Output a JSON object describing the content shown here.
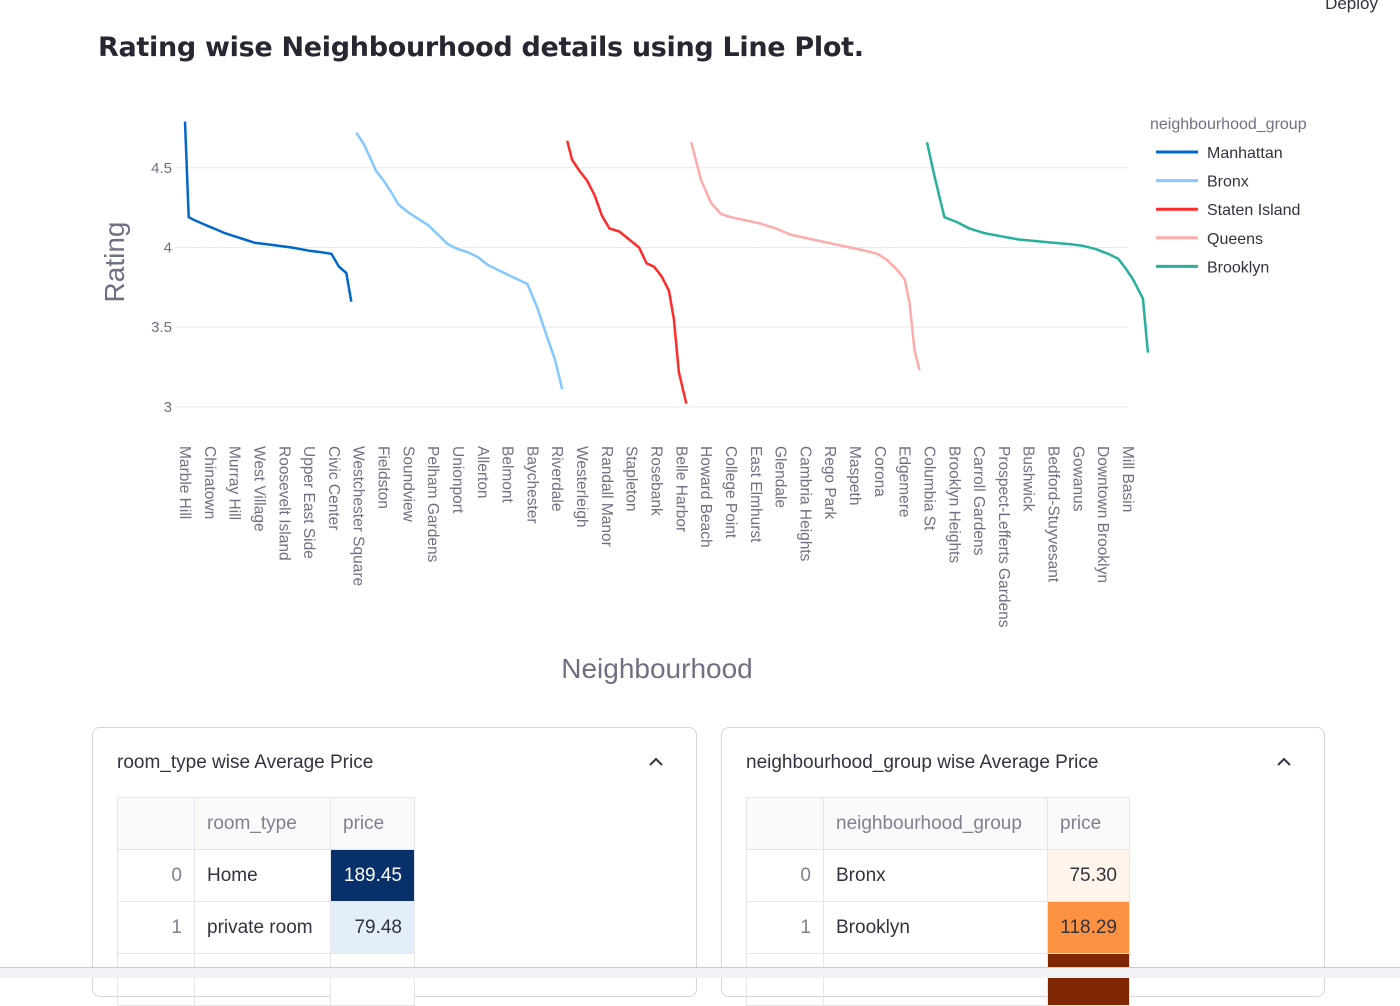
{
  "header": {
    "deploy_label": "Deploy"
  },
  "page": {
    "title": "Rating wise Neighbourhood details using Line Plot."
  },
  "chart_data": {
    "type": "line",
    "xlabel": "Neighbourhood",
    "ylabel": "Rating",
    "ylim": [
      2.98,
      4.8
    ],
    "yticks": [
      "3",
      "3.5",
      "4",
      "4.5"
    ],
    "grid": true,
    "legend_title": "neighbourhood_group",
    "legend_position": "top-right",
    "x_tick_labels": [
      "Marble Hill",
      "Chinatown",
      "Murray Hill",
      "West Village",
      "Roosevelt Island",
      "Upper East Side",
      "Civic Center",
      "Westchester Square",
      "Fieldston",
      "Soundview",
      "Pelham Gardens",
      "Unionport",
      "Allerton",
      "Belmont",
      "Baychester",
      "Riverdale",
      "Westerleigh",
      "Randall Manor",
      "Stapleton",
      "Rosebank",
      "Belle Harbor",
      "Howard Beach",
      "College Point",
      "East Elmhurst",
      "Glendale",
      "Cambria Heights",
      "Rego Park",
      "Maspeth",
      "Corona",
      "Edgemere",
      "Columbia St",
      "Brooklyn Heights",
      "Carroll Gardens",
      "Prospect-Lefferts Gardens",
      "Bushwick",
      "Bedford-Stuyvesant",
      "Gowanus",
      "Downtown Brooklyn",
      "Mill Basin"
    ],
    "series": [
      {
        "name": "Manhattan",
        "color": "#0068c9",
        "x": [
          0,
          0.15,
          0.4,
          0.7,
          1,
          1.3,
          1.6,
          2,
          2.4,
          2.8,
          3.3,
          3.8,
          4.3,
          5,
          5.5,
          5.9,
          6.2,
          6.5,
          6.7
        ],
        "y": [
          4.79,
          4.19,
          4.17,
          4.15,
          4.13,
          4.11,
          4.09,
          4.07,
          4.05,
          4.03,
          4.02,
          4.01,
          4.0,
          3.98,
          3.97,
          3.96,
          3.88,
          3.84,
          3.66
        ]
      },
      {
        "name": "Bronx",
        "color": "#83c9ff",
        "x": [
          6.9,
          7.2,
          7.5,
          7.7,
          8,
          8.3,
          8.6,
          9,
          9.4,
          9.8,
          10.2,
          10.6,
          11,
          11.4,
          11.8,
          12.2,
          12.6,
          13,
          13.4,
          13.8,
          14.2,
          14.5,
          14.9,
          15.2
        ],
        "y": [
          4.72,
          4.65,
          4.55,
          4.48,
          4.42,
          4.35,
          4.27,
          4.22,
          4.18,
          4.14,
          4.08,
          4.02,
          3.99,
          3.97,
          3.94,
          3.89,
          3.86,
          3.83,
          3.8,
          3.77,
          3.62,
          3.48,
          3.3,
          3.11
        ]
      },
      {
        "name": "Staten Island",
        "color": "#ff2b2b",
        "x": [
          15.4,
          15.6,
          15.9,
          16.2,
          16.5,
          16.8,
          17.1,
          17.5,
          17.9,
          18.3,
          18.6,
          18.9,
          19.2,
          19.5,
          19.7,
          19.9,
          20.2
        ],
        "y": [
          4.67,
          4.55,
          4.48,
          4.42,
          4.33,
          4.2,
          4.12,
          4.1,
          4.05,
          4.0,
          3.9,
          3.88,
          3.82,
          3.73,
          3.55,
          3.22,
          3.02
        ]
      },
      {
        "name": "Queens",
        "color": "#ffabab",
        "x": [
          20.4,
          20.8,
          21.2,
          21.6,
          22,
          22.6,
          23.2,
          23.8,
          24.4,
          25,
          25.6,
          26.2,
          26.8,
          27.4,
          27.9,
          28.3,
          28.7,
          29,
          29.2,
          29.4,
          29.6
        ],
        "y": [
          4.66,
          4.42,
          4.28,
          4.21,
          4.19,
          4.17,
          4.15,
          4.12,
          4.08,
          4.06,
          4.04,
          4.02,
          4.0,
          3.98,
          3.96,
          3.92,
          3.86,
          3.8,
          3.65,
          3.35,
          3.23
        ]
      },
      {
        "name": "Brooklyn",
        "color": "#29b09d",
        "x": [
          29.9,
          30.2,
          30.6,
          31.1,
          31.6,
          32.2,
          32.9,
          33.6,
          34.3,
          35,
          35.7,
          36.2,
          36.7,
          37.2,
          37.6,
          37.9,
          38.2,
          38.6,
          38.8
        ],
        "y": [
          4.66,
          4.45,
          4.19,
          4.16,
          4.12,
          4.09,
          4.07,
          4.05,
          4.04,
          4.03,
          4.02,
          4.01,
          3.99,
          3.96,
          3.93,
          3.87,
          3.8,
          3.68,
          3.34
        ]
      }
    ]
  },
  "panels": [
    {
      "title": "room_type wise Average Price",
      "columns": [
        "",
        "room_type",
        "price"
      ],
      "rows": [
        {
          "index": "0",
          "label": "Home",
          "price": "189.45",
          "bg": "#08306b",
          "fg": "#ffffff"
        },
        {
          "index": "1",
          "label": "private room",
          "price": "79.48",
          "bg": "#e3eef9",
          "fg": "#31333f"
        }
      ]
    },
    {
      "title": "neighbourhood_group wise Average Price",
      "columns": [
        "",
        "neighbourhood_group",
        "price"
      ],
      "rows": [
        {
          "index": "0",
          "label": "Bronx",
          "price": "75.30",
          "bg": "#fff5eb",
          "fg": "#31333f"
        },
        {
          "index": "1",
          "label": "Brooklyn",
          "price": "118.29",
          "bg": "#fd9243",
          "fg": "#31333f"
        }
      ]
    }
  ]
}
